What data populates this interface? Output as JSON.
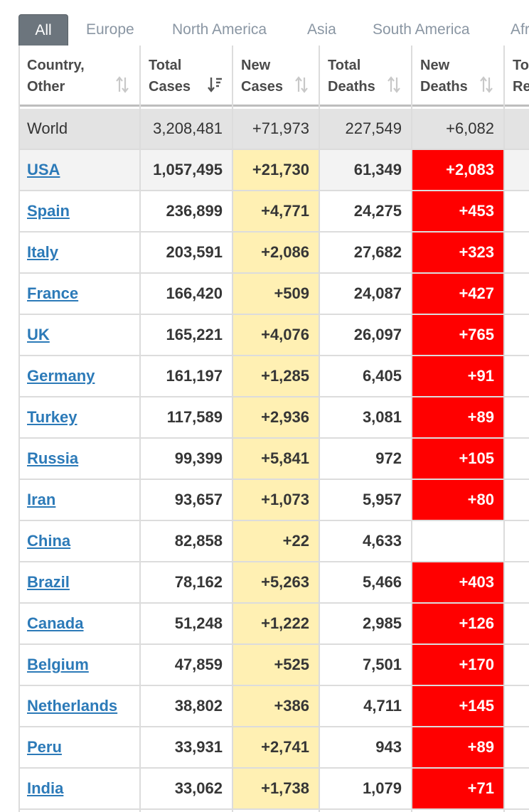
{
  "tabs": [
    {
      "label": "All",
      "active": true
    },
    {
      "label": "Europe"
    },
    {
      "label": "North America"
    },
    {
      "label": "Asia"
    },
    {
      "label": "South America"
    },
    {
      "label": "Afr"
    }
  ],
  "headers": [
    {
      "label": "Country,\nOther"
    },
    {
      "label": "Total\nCases"
    },
    {
      "label": "New\nCases"
    },
    {
      "label": "Total\nDeaths"
    },
    {
      "label": "New\nDeaths"
    },
    {
      "label": "To\nRe"
    }
  ],
  "world": {
    "country": "World",
    "total_cases": "3,208,481",
    "new_cases": "+71,973",
    "total_deaths": "227,549",
    "new_deaths": "+6,082"
  },
  "rows": [
    {
      "country": "USA",
      "total_cases": "1,057,495",
      "new_cases": "+21,730",
      "total_deaths": "61,349",
      "new_deaths": "+2,083"
    },
    {
      "country": "Spain",
      "total_cases": "236,899",
      "new_cases": "+4,771",
      "total_deaths": "24,275",
      "new_deaths": "+453"
    },
    {
      "country": "Italy",
      "total_cases": "203,591",
      "new_cases": "+2,086",
      "total_deaths": "27,682",
      "new_deaths": "+323"
    },
    {
      "country": "France",
      "total_cases": "166,420",
      "new_cases": "+509",
      "total_deaths": "24,087",
      "new_deaths": "+427"
    },
    {
      "country": "UK",
      "total_cases": "165,221",
      "new_cases": "+4,076",
      "total_deaths": "26,097",
      "new_deaths": "+765"
    },
    {
      "country": "Germany",
      "total_cases": "161,197",
      "new_cases": "+1,285",
      "total_deaths": "6,405",
      "new_deaths": "+91"
    },
    {
      "country": "Turkey",
      "total_cases": "117,589",
      "new_cases": "+2,936",
      "total_deaths": "3,081",
      "new_deaths": "+89"
    },
    {
      "country": "Russia",
      "total_cases": "99,399",
      "new_cases": "+5,841",
      "total_deaths": "972",
      "new_deaths": "+105"
    },
    {
      "country": "Iran",
      "total_cases": "93,657",
      "new_cases": "+1,073",
      "total_deaths": "5,957",
      "new_deaths": "+80"
    },
    {
      "country": "China",
      "total_cases": "82,858",
      "new_cases": "+22",
      "total_deaths": "4,633",
      "new_deaths": ""
    },
    {
      "country": "Brazil",
      "total_cases": "78,162",
      "new_cases": "+5,263",
      "total_deaths": "5,466",
      "new_deaths": "+403"
    },
    {
      "country": "Canada",
      "total_cases": "51,248",
      "new_cases": "+1,222",
      "total_deaths": "2,985",
      "new_deaths": "+126"
    },
    {
      "country": "Belgium",
      "total_cases": "47,859",
      "new_cases": "+525",
      "total_deaths": "7,501",
      "new_deaths": "+170"
    },
    {
      "country": "Netherlands",
      "total_cases": "38,802",
      "new_cases": "+386",
      "total_deaths": "4,711",
      "new_deaths": "+145"
    },
    {
      "country": "Peru",
      "total_cases": "33,931",
      "new_cases": "+2,741",
      "total_deaths": "943",
      "new_deaths": "+89"
    },
    {
      "country": "India",
      "total_cases": "33,062",
      "new_cases": "+1,738",
      "total_deaths": "1,079",
      "new_deaths": "+71"
    }
  ],
  "colors": {
    "new_cases_bg": "#fff0b3",
    "new_deaths_bg": "#ff0000",
    "link": "#2c7ab8",
    "active_tab": "#6c757d"
  },
  "icons": {
    "sort": "sort-arrows-icon",
    "sort_active": "sort-desc-icon"
  }
}
